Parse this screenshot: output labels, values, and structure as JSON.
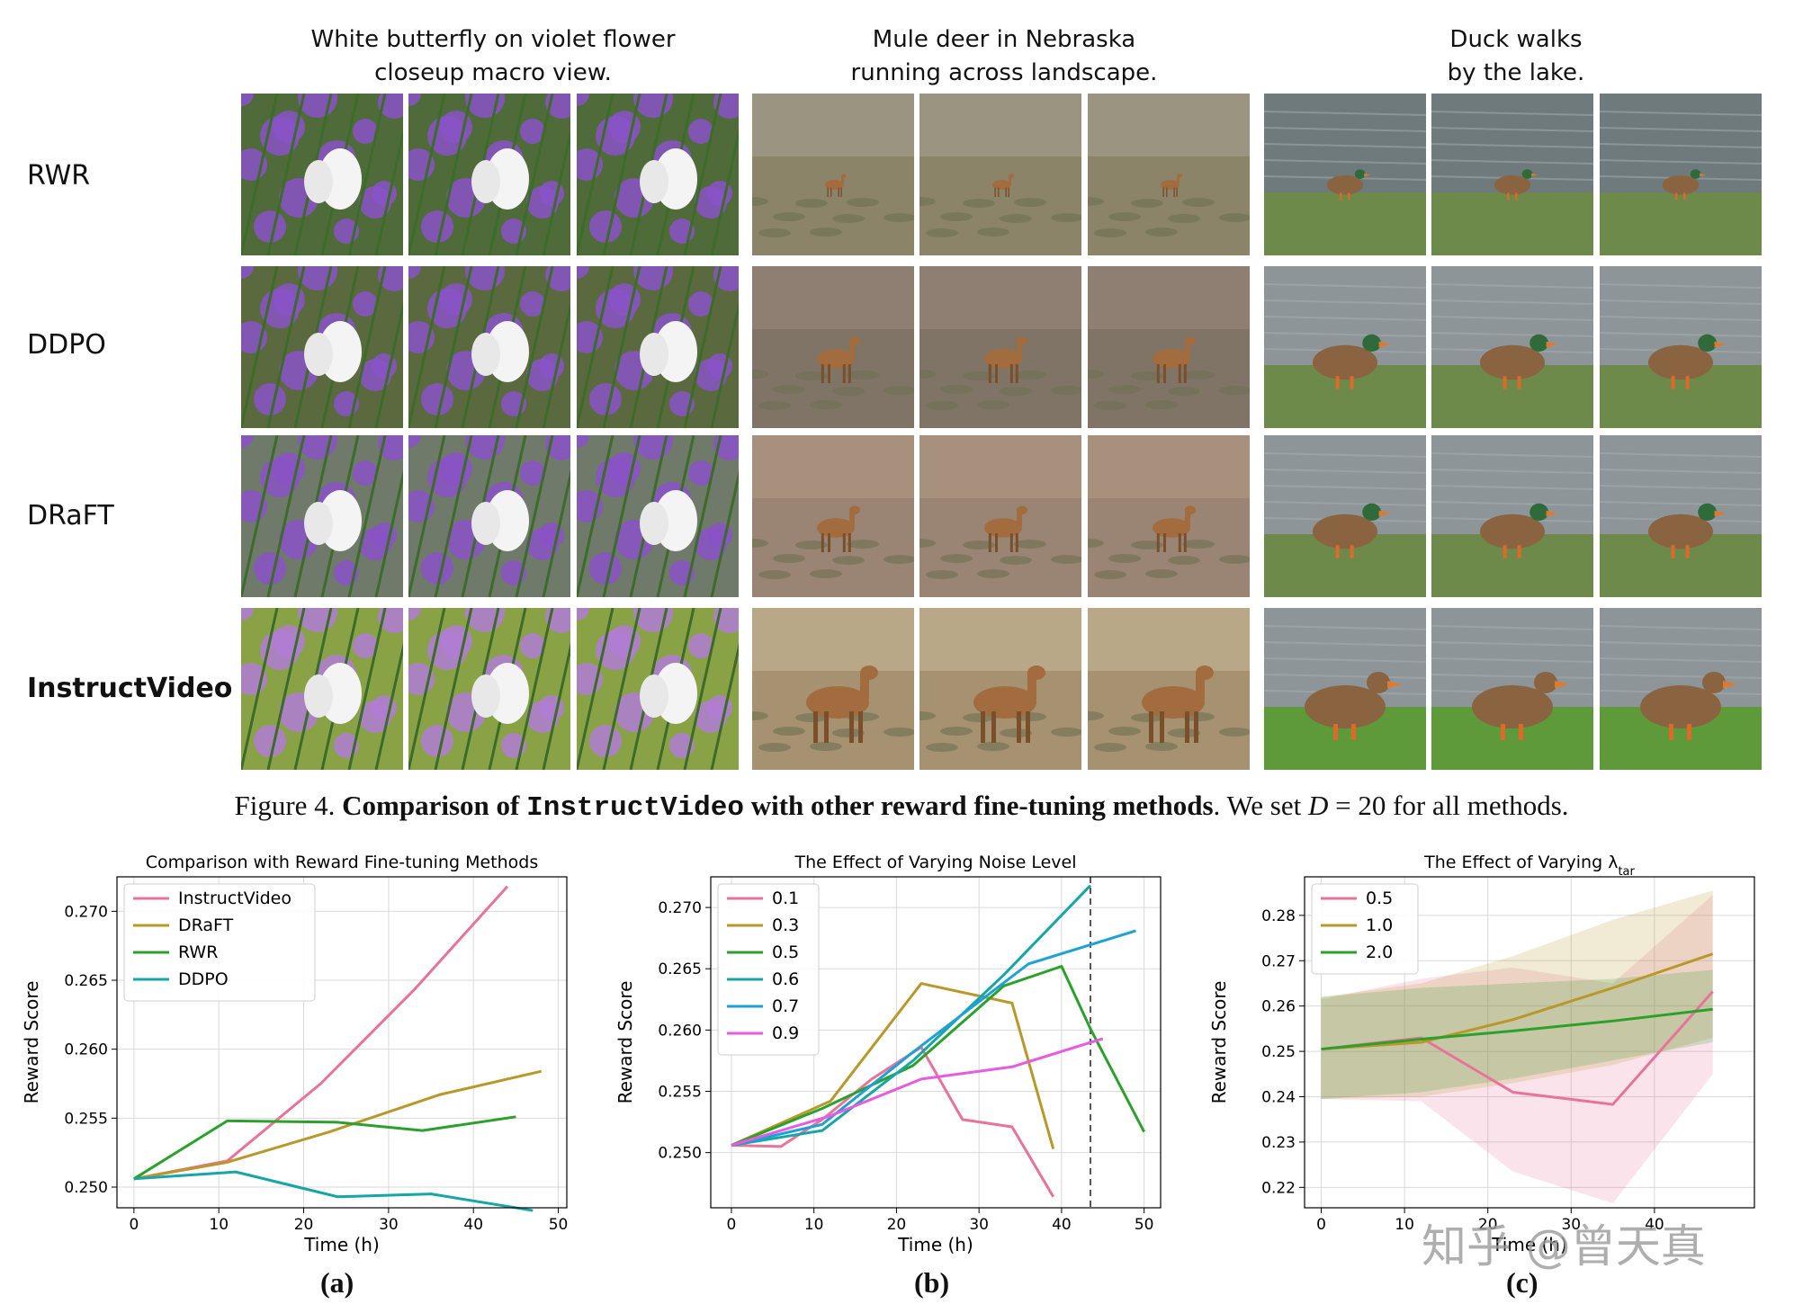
{
  "prompts": [
    {
      "line1": "White butterfly on violet flower",
      "line2": "closeup macro view."
    },
    {
      "line1": "Mule deer in Nebraska",
      "line2": "running across landscape."
    },
    {
      "line1": "Duck walks",
      "line2": "by the lake."
    }
  ],
  "methods": [
    "RWR",
    "DDPO",
    "DRaFT",
    "InstructVideo"
  ],
  "figure_caption": {
    "prefix": "Figure 4. ",
    "bold1": "Comparison of ",
    "mono": "InstructVideo",
    "bold2": " with other reward fine-tuning methods",
    "rest1": ". We set ",
    "var": "D",
    "rest2": " = 20 for all methods."
  },
  "sublabels": [
    "(a)",
    "(b)",
    "(c)"
  ],
  "watermark": "知乎 @曾天真",
  "colors": {
    "pink": "#e8739a",
    "olive": "#b8982a",
    "green": "#2ca02c",
    "teal": "#17a6a6",
    "cyan": "#1ea1d6",
    "magenta": "#e55ce0"
  },
  "chart_data": [
    {
      "type": "line",
      "title": "Comparison with Reward Fine-tuning Methods",
      "xlabel": "Time (h)",
      "ylabel": "Reward Score",
      "xlim": [
        -2,
        51
      ],
      "ylim": [
        0.2485,
        0.2725
      ],
      "xticks": [
        0,
        10,
        20,
        30,
        40,
        50
      ],
      "yticks": [
        0.25,
        0.255,
        0.26,
        0.265,
        0.27
      ],
      "grid": true,
      "legend": "top-left",
      "series": [
        {
          "name": "InstructVideo",
          "color": "#e8739a",
          "x": [
            0,
            11,
            22,
            33,
            44
          ],
          "y": [
            0.2506,
            0.2519,
            0.2575,
            0.2643,
            0.2718
          ]
        },
        {
          "name": "DRaFT",
          "color": "#b8982a",
          "x": [
            0,
            11,
            23,
            36,
            48
          ],
          "y": [
            0.2506,
            0.2518,
            0.254,
            0.2567,
            0.2584
          ]
        },
        {
          "name": "RWR",
          "color": "#2ca02c",
          "x": [
            0,
            11,
            24,
            34,
            45
          ],
          "y": [
            0.2506,
            0.2548,
            0.2547,
            0.2541,
            0.2551
          ]
        },
        {
          "name": "DDPO",
          "color": "#17a6a6",
          "x": [
            0,
            12,
            24,
            35,
            47
          ],
          "y": [
            0.2506,
            0.2511,
            0.2493,
            0.2495,
            0.2483
          ]
        }
      ]
    },
    {
      "type": "line",
      "title": "The Effect of Varying Noise Level",
      "xlabel": "Time (h)",
      "ylabel": "Reward Score",
      "xlim": [
        -2.5,
        52
      ],
      "ylim": [
        0.2455,
        0.2725
      ],
      "xticks": [
        0,
        10,
        20,
        30,
        40,
        50
      ],
      "yticks": [
        0.25,
        0.255,
        0.26,
        0.265,
        0.27
      ],
      "grid": true,
      "legend": "top-left",
      "vline_x": 43.5,
      "series": [
        {
          "name": "0.1",
          "color": "#e8739a",
          "x": [
            0,
            6,
            11,
            17,
            23,
            28,
            34,
            39
          ],
          "y": [
            0.2506,
            0.2505,
            0.2527,
            0.256,
            0.2586,
            0.2527,
            0.2521,
            0.2464
          ]
        },
        {
          "name": "0.3",
          "color": "#b8982a",
          "x": [
            0,
            12,
            23,
            34,
            39
          ],
          "y": [
            0.2506,
            0.2542,
            0.2638,
            0.2622,
            0.2503
          ]
        },
        {
          "name": "0.5",
          "color": "#2ca02c",
          "x": [
            0,
            11,
            22,
            33,
            40,
            43.5,
            50
          ],
          "y": [
            0.2506,
            0.2536,
            0.2571,
            0.2636,
            0.2652,
            0.2601,
            0.2517
          ]
        },
        {
          "name": "0.6",
          "color": "#17a6a6",
          "x": [
            0,
            11,
            22,
            33,
            43.5
          ],
          "y": [
            0.2506,
            0.2518,
            0.2575,
            0.2645,
            0.2718
          ]
        },
        {
          "name": "0.7",
          "color": "#1ea1d6",
          "x": [
            0,
            11,
            22,
            36,
            49
          ],
          "y": [
            0.2506,
            0.2523,
            0.2582,
            0.2654,
            0.2681
          ]
        },
        {
          "name": "0.9",
          "color": "#e55ce0",
          "x": [
            0,
            12,
            23,
            34,
            45
          ],
          "y": [
            0.2506,
            0.253,
            0.256,
            0.257,
            0.2593
          ]
        }
      ]
    },
    {
      "type": "area",
      "title": "The Effect of Varying λ",
      "title_sub": "tar",
      "xlabel": "Time (h)",
      "ylabel": "Reward Score",
      "xlim": [
        -2,
        52
      ],
      "ylim": [
        0.2155,
        0.2885
      ],
      "xticks": [
        0,
        10,
        20,
        30,
        40
      ],
      "yticks": [
        0.22,
        0.23,
        0.24,
        0.25,
        0.26,
        0.27,
        0.28
      ],
      "grid": true,
      "legend": "top-left",
      "series": [
        {
          "name": "0.5",
          "color": "#e8739a",
          "x": [
            0,
            12,
            23,
            35,
            47
          ],
          "y": [
            0.2505,
            0.253,
            0.241,
            0.2383,
            0.2632
          ],
          "lower": [
            0.2395,
            0.239,
            0.2235,
            0.2165,
            0.245
          ],
          "upper": [
            0.2615,
            0.266,
            0.2685,
            0.265,
            0.2845
          ]
        },
        {
          "name": "1.0",
          "color": "#b8982a",
          "x": [
            0,
            12,
            23,
            35,
            47
          ],
          "y": [
            0.2505,
            0.252,
            0.257,
            0.264,
            0.2715
          ],
          "lower": [
            0.2395,
            0.24,
            0.243,
            0.247,
            0.253
          ],
          "upper": [
            0.262,
            0.265,
            0.271,
            0.279,
            0.2855
          ]
        },
        {
          "name": "2.0",
          "color": "#2ca02c",
          "x": [
            0,
            12,
            23,
            35,
            47
          ],
          "y": [
            0.2505,
            0.2527,
            0.2545,
            0.2567,
            0.2593
          ],
          "lower": [
            0.2395,
            0.241,
            0.244,
            0.248,
            0.252
          ],
          "upper": [
            0.262,
            0.264,
            0.265,
            0.266,
            0.268
          ]
        }
      ]
    }
  ]
}
